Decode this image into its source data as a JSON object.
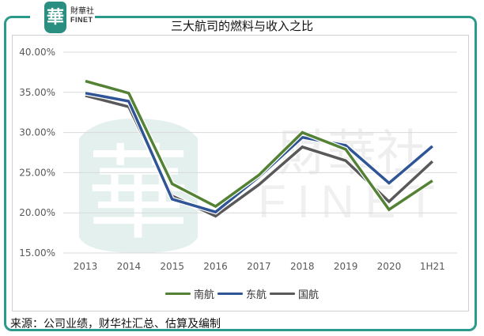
{
  "header": {
    "logo_glyph": "華",
    "logo_cn": "財華社",
    "logo_en": "FINET",
    "title": "三大航司的燃料与收入之比"
  },
  "footer": {
    "source": "来源：公司业绩，财华社汇总、估算及编制"
  },
  "colors": {
    "frame": "#2a9a8c",
    "south": "#548235",
    "east": "#2f5597",
    "national": "#595959",
    "grid": "#d9d9d9",
    "watermark": "#e3f0ee"
  },
  "chart_data": {
    "type": "line",
    "title": "三大航司的燃料与收入之比",
    "xlabel": "",
    "ylabel": "",
    "categories": [
      "2013",
      "2014",
      "2015",
      "2016",
      "2017",
      "2018",
      "2019",
      "2020",
      "1H21"
    ],
    "yticks": [
      "15.00%",
      "20.00%",
      "25.00%",
      "30.00%",
      "35.00%",
      "40.00%"
    ],
    "ylim": [
      0.15,
      0.4
    ],
    "grid": true,
    "legend_position": "bottom",
    "series": [
      {
        "name": "南航",
        "color": "#548235",
        "values": [
          0.364,
          0.349,
          0.236,
          0.208,
          0.247,
          0.3,
          0.279,
          0.204,
          0.24
        ]
      },
      {
        "name": "东航",
        "color": "#2f5597",
        "values": [
          0.349,
          0.339,
          0.217,
          0.201,
          0.245,
          0.294,
          0.284,
          0.237,
          0.283
        ]
      },
      {
        "name": "国航",
        "color": "#595959",
        "values": [
          0.346,
          0.332,
          0.221,
          0.196,
          0.235,
          0.282,
          0.265,
          0.214,
          0.264
        ]
      }
    ]
  }
}
